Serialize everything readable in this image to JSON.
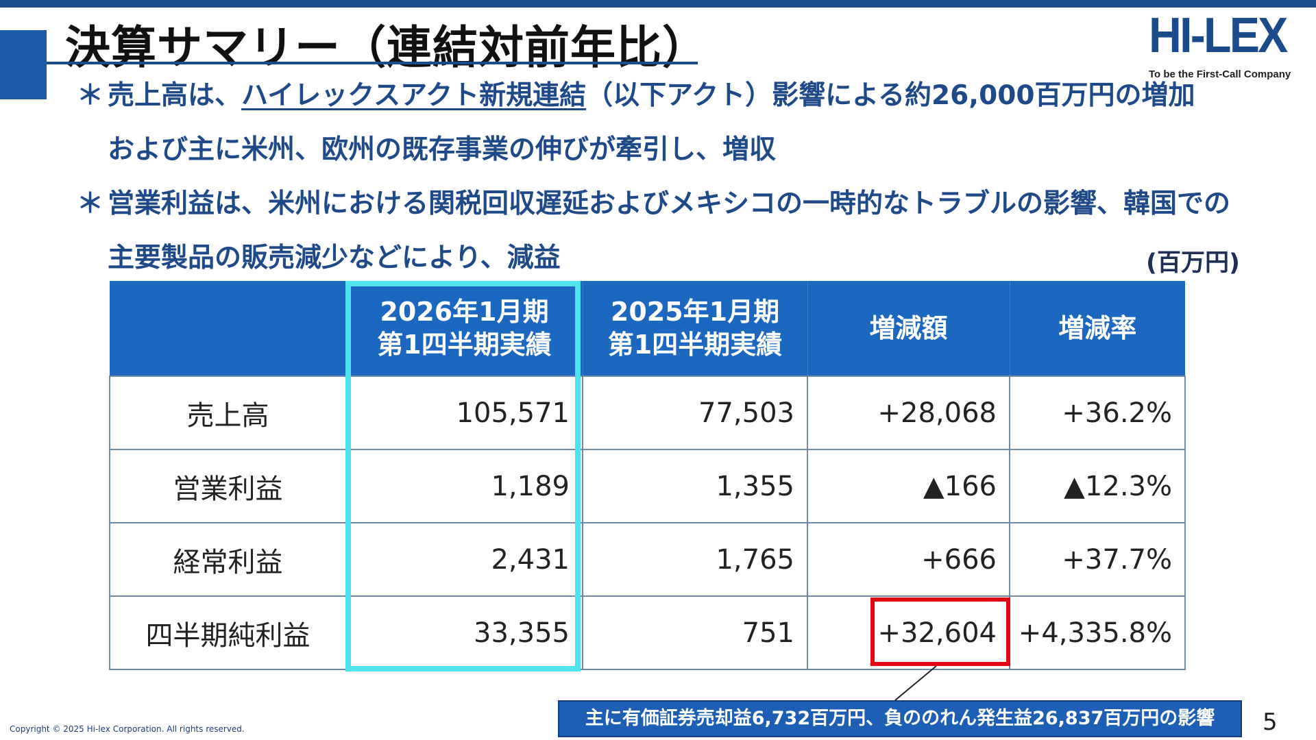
{
  "title": "決算サマリー（連結対前年比）",
  "logo": {
    "mark": "HI-LEX",
    "tagline": "To be the First-Call Company"
  },
  "bullets": [
    {
      "marker": "＊",
      "line1_pre": "売上高は、",
      "line1_link": "ハイレックスアクト新規連結",
      "line1_post": "（以下アクト）影響による約26,000百万円の増加",
      "line2": "および主に米州、欧州の既存事業の伸びが牽引し、増収"
    },
    {
      "marker": "＊",
      "line1": "営業利益は、米州における関税回収遅延およびメキシコの一時的なトラブルの影響、韓国での",
      "line2": "主要製品の販売減少などにより、減益"
    }
  ],
  "unit": "(百万円)",
  "table": {
    "headers": [
      {
        "line1": "",
        "line2": ""
      },
      {
        "line1": "2026年1月期",
        "line2": "第1四半期実績"
      },
      {
        "line1": "2025年1月期",
        "line2": "第1四半期実績"
      },
      {
        "line1": "増減額",
        "line2": ""
      },
      {
        "line1": "増減率",
        "line2": ""
      }
    ],
    "rows": [
      {
        "label": "売上高",
        "current": "105,571",
        "prior": "77,503",
        "change": "+28,068",
        "rate": "+36.2%"
      },
      {
        "label": "営業利益",
        "current": "1,189",
        "prior": "1,355",
        "change": "▲166",
        "rate": "▲12.3%"
      },
      {
        "label": "経常利益",
        "current": "2,431",
        "prior": "1,765",
        "change": "+666",
        "rate": "+37.7%"
      },
      {
        "label": "四半期純利益",
        "current": "33,355",
        "prior": "751",
        "change": "+32,604",
        "rate": "+4,335.8%"
      }
    ]
  },
  "note": "主に有価証券売却益6,732百万円、負ののれん発生益26,837百万円の影響",
  "copyright": "Copyright © 2025 Hi-lex Corporation. All rights reserved.",
  "page_number": "5",
  "colors": {
    "brand_blue": "#1a4c8c",
    "header_blue": "#1c68c0",
    "highlight_cyan": "#4fe3ee",
    "highlight_red": "#e30613"
  }
}
